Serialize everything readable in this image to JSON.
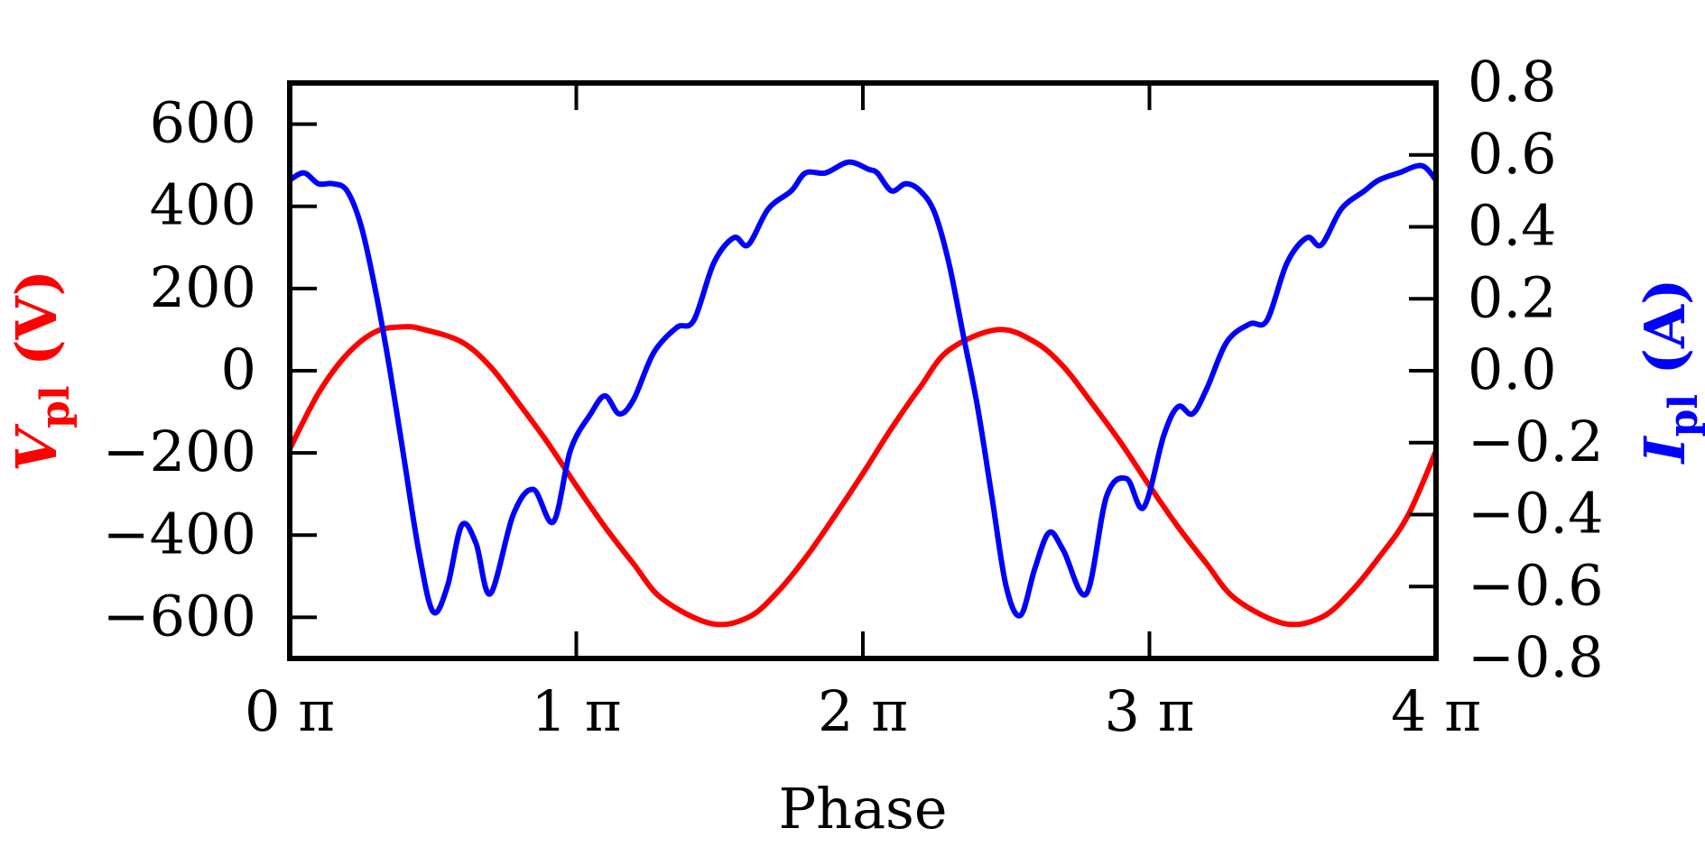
{
  "chart_data": {
    "type": "line",
    "xlabel": "Phase",
    "x_range": [
      0,
      4
    ],
    "x_ticks": [
      {
        "value": 0,
        "label": "0 π"
      },
      {
        "value": 1,
        "label": "1 π"
      },
      {
        "value": 2,
        "label": "2 π"
      },
      {
        "value": 3,
        "label": "3 π"
      },
      {
        "value": 4,
        "label": "4 π"
      }
    ],
    "left_axis": {
      "label": "V_pl (V)",
      "label_main": "V",
      "label_sub": "pl",
      "label_unit": " (V)",
      "color": "#ff0000",
      "ylim": [
        -700,
        700
      ],
      "ticks": [
        {
          "value": 600,
          "label": "600"
        },
        {
          "value": 400,
          "label": "400"
        },
        {
          "value": 200,
          "label": "200"
        },
        {
          "value": 0,
          "label": "0"
        },
        {
          "value": -200,
          "label": "−200"
        },
        {
          "value": -400,
          "label": "−400"
        },
        {
          "value": -600,
          "label": "−600"
        }
      ]
    },
    "right_axis": {
      "label": "I_pl (A)",
      "label_main": "I",
      "label_sub": "pl",
      "label_unit": " (A)",
      "color": "#0000ff",
      "ylim": [
        -0.8,
        0.8
      ],
      "ticks": [
        {
          "value": 0.8,
          "label": "0.8"
        },
        {
          "value": 0.6,
          "label": "0.6"
        },
        {
          "value": 0.4,
          "label": "0.4"
        },
        {
          "value": 0.2,
          "label": "0.2"
        },
        {
          "value": 0.0,
          "label": "0.0"
        },
        {
          "value": -0.2,
          "label": "−0.2"
        },
        {
          "value": -0.4,
          "label": "−0.4"
        },
        {
          "value": -0.6,
          "label": "−0.6"
        },
        {
          "value": -0.8,
          "label": "−0.8"
        }
      ]
    },
    "series": [
      {
        "name": "V_pl",
        "axis": "left",
        "color": "#ff0000",
        "x": [
          0,
          0.1,
          0.2,
          0.3,
          0.4,
          0.47,
          0.6,
          0.7,
          0.8,
          0.9,
          1.0,
          1.1,
          1.2,
          1.3,
          1.47,
          1.6,
          1.7,
          1.8,
          1.9,
          2.0,
          2.1,
          2.2,
          2.3,
          2.47,
          2.6,
          2.7,
          2.8,
          2.9,
          3.0,
          3.1,
          3.2,
          3.3,
          3.47,
          3.6,
          3.7,
          3.8,
          3.9,
          4.0
        ],
        "y": [
          -190,
          -55,
          40,
          95,
          107,
          100,
          70,
          10,
          -80,
          -175,
          -280,
          -380,
          -470,
          -555,
          -615,
          -600,
          -540,
          -455,
          -355,
          -250,
          -140,
          -40,
          50,
          100,
          70,
          10,
          -80,
          -175,
          -280,
          -380,
          -470,
          -555,
          -615,
          -600,
          -540,
          -455,
          -355,
          -195
        ]
      },
      {
        "name": "I_pl",
        "axis": "right",
        "color": "#0000ff",
        "x": [
          0,
          0.05,
          0.1,
          0.15,
          0.2,
          0.25,
          0.3,
          0.35,
          0.4,
          0.45,
          0.5,
          0.55,
          0.6,
          0.65,
          0.7,
          0.78,
          0.85,
          0.92,
          0.98,
          1.05,
          1.1,
          1.15,
          1.2,
          1.27,
          1.35,
          1.41,
          1.48,
          1.55,
          1.6,
          1.67,
          1.75,
          1.8,
          1.87,
          1.95,
          2.02,
          2.05,
          2.1,
          2.15,
          2.2,
          2.25,
          2.3,
          2.35,
          2.4,
          2.45,
          2.5,
          2.55,
          2.6,
          2.65,
          2.7,
          2.78,
          2.85,
          2.92,
          2.98,
          3.05,
          3.1,
          3.15,
          3.2,
          3.27,
          3.35,
          3.41,
          3.48,
          3.55,
          3.6,
          3.67,
          3.75,
          3.8,
          3.87,
          3.95,
          4.0
        ],
        "y": [
          0.53,
          0.55,
          0.52,
          0.52,
          0.5,
          0.4,
          0.22,
          0.0,
          -0.25,
          -0.5,
          -0.67,
          -0.6,
          -0.43,
          -0.48,
          -0.62,
          -0.4,
          -0.33,
          -0.42,
          -0.22,
          -0.12,
          -0.07,
          -0.12,
          -0.08,
          0.05,
          0.12,
          0.14,
          0.3,
          0.37,
          0.35,
          0.45,
          0.5,
          0.55,
          0.55,
          0.58,
          0.56,
          0.55,
          0.5,
          0.52,
          0.5,
          0.44,
          0.3,
          0.1,
          -0.1,
          -0.35,
          -0.6,
          -0.68,
          -0.55,
          -0.45,
          -0.5,
          -0.62,
          -0.35,
          -0.3,
          -0.38,
          -0.18,
          -0.1,
          -0.12,
          -0.05,
          0.08,
          0.13,
          0.14,
          0.3,
          0.37,
          0.35,
          0.45,
          0.5,
          0.53,
          0.55,
          0.57,
          0.53
        ]
      }
    ]
  }
}
